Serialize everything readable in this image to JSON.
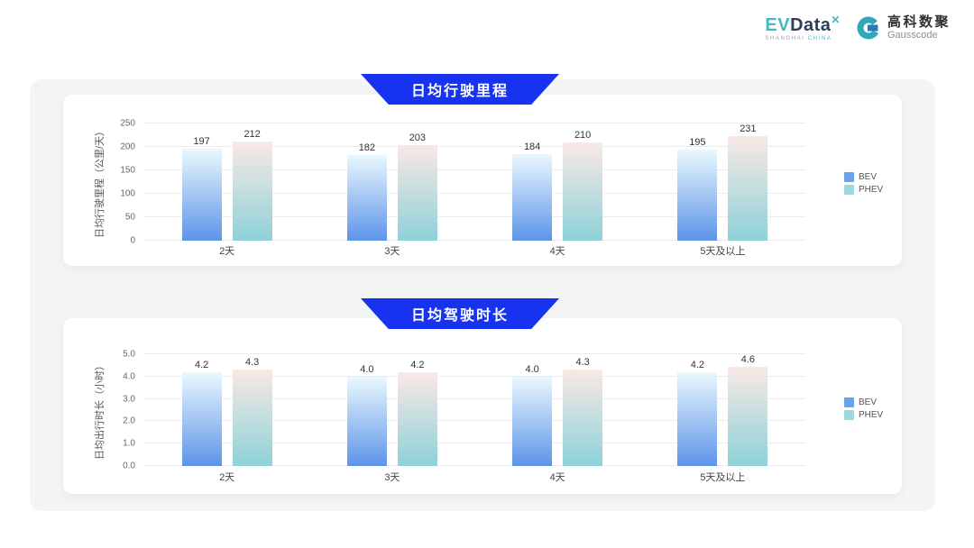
{
  "page": {
    "background": "#ffffff",
    "panel_background": "#f3f4f5"
  },
  "header": {
    "evdata": {
      "ev": "EV",
      "data": "Data",
      "sup": "✕",
      "sub_left": "SHANGHAI",
      "sub_right": "CHINA"
    },
    "gausscode": {
      "cn": "高科数聚",
      "en": "Gausscode"
    }
  },
  "colors": {
    "banner": "#1733ef",
    "grid": "#ececec",
    "series": [
      {
        "name": "BEV",
        "top": "#eaf8fe",
        "bottom": "#5d94e8",
        "legend": "#6ba2ec"
      },
      {
        "name": "PHEV",
        "top": "#f9e9e5",
        "bottom": "#8ed1d8",
        "legend": "#9bd8e2"
      }
    ]
  },
  "chart_data": [
    {
      "type": "bar",
      "title": "日均行驶里程",
      "ylabel": "日均行驶里程（公里/天）",
      "xlabel": "",
      "ylim": [
        0,
        250
      ],
      "yticks": [
        "0",
        "50",
        "100",
        "150",
        "200",
        "250"
      ],
      "categories": [
        "2天",
        "3天",
        "4天",
        "5天及以上"
      ],
      "series": [
        {
          "name": "BEV",
          "values": [
            197,
            182,
            184,
            195
          ],
          "labels": [
            "197",
            "182",
            "184",
            "195"
          ]
        },
        {
          "name": "PHEV",
          "values": [
            212,
            203,
            210,
            231
          ],
          "labels": [
            "212",
            "203",
            "210",
            "231"
          ]
        }
      ],
      "grid": true,
      "legend_position": "right"
    },
    {
      "type": "bar",
      "title": "日均驾驶时长",
      "ylabel": "日均出行时长（小时）",
      "xlabel": "",
      "ylim": [
        0,
        5
      ],
      "yticks": [
        "0.0",
        "1.0",
        "2.0",
        "3.0",
        "4.0",
        "5.0"
      ],
      "categories": [
        "2天",
        "3天",
        "4天",
        "5天及以上"
      ],
      "series": [
        {
          "name": "BEV",
          "values": [
            4.2,
            4.0,
            4.0,
            4.2
          ],
          "labels": [
            "4.2",
            "4.0",
            "4.0",
            "4.2"
          ]
        },
        {
          "name": "PHEV",
          "values": [
            4.3,
            4.2,
            4.3,
            4.6
          ],
          "labels": [
            "4.3",
            "4.2",
            "4.3",
            "4.6"
          ]
        }
      ],
      "grid": true,
      "legend_position": "right"
    }
  ]
}
